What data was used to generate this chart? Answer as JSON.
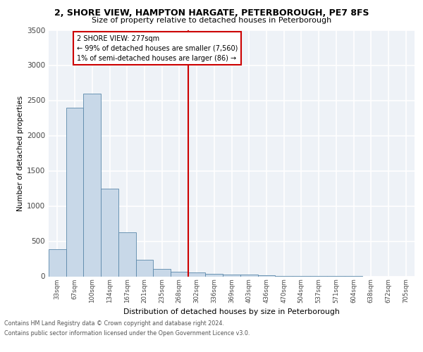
{
  "title": "2, SHORE VIEW, HAMPTON HARGATE, PETERBOROUGH, PE7 8FS",
  "subtitle": "Size of property relative to detached houses in Peterborough",
  "xlabel": "Distribution of detached houses by size in Peterborough",
  "ylabel": "Number of detached properties",
  "categories": [
    "33sqm",
    "67sqm",
    "100sqm",
    "134sqm",
    "167sqm",
    "201sqm",
    "235sqm",
    "268sqm",
    "302sqm",
    "336sqm",
    "369sqm",
    "403sqm",
    "436sqm",
    "470sqm",
    "504sqm",
    "537sqm",
    "571sqm",
    "604sqm",
    "638sqm",
    "672sqm",
    "705sqm"
  ],
  "values": [
    390,
    2400,
    2600,
    1250,
    630,
    235,
    110,
    65,
    60,
    35,
    30,
    25,
    15,
    5,
    3,
    2,
    1,
    1,
    0,
    0,
    0
  ],
  "bar_color": "#c8d8e8",
  "bar_edge_color": "#5b88aa",
  "vline_x": 7.5,
  "vline_color": "#cc0000",
  "annotation_title": "2 SHORE VIEW: 277sqm",
  "annotation_line1": "← 99% of detached houses are smaller (7,560)",
  "annotation_line2": "1% of semi-detached houses are larger (86) →",
  "annotation_box_color": "#cc0000",
  "ylim": [
    0,
    3500
  ],
  "yticks": [
    0,
    500,
    1000,
    1500,
    2000,
    2500,
    3000,
    3500
  ],
  "footer_line1": "Contains HM Land Registry data © Crown copyright and database right 2024.",
  "footer_line2": "Contains public sector information licensed under the Open Government Licence v3.0.",
  "plot_bg_color": "#eef2f7"
}
